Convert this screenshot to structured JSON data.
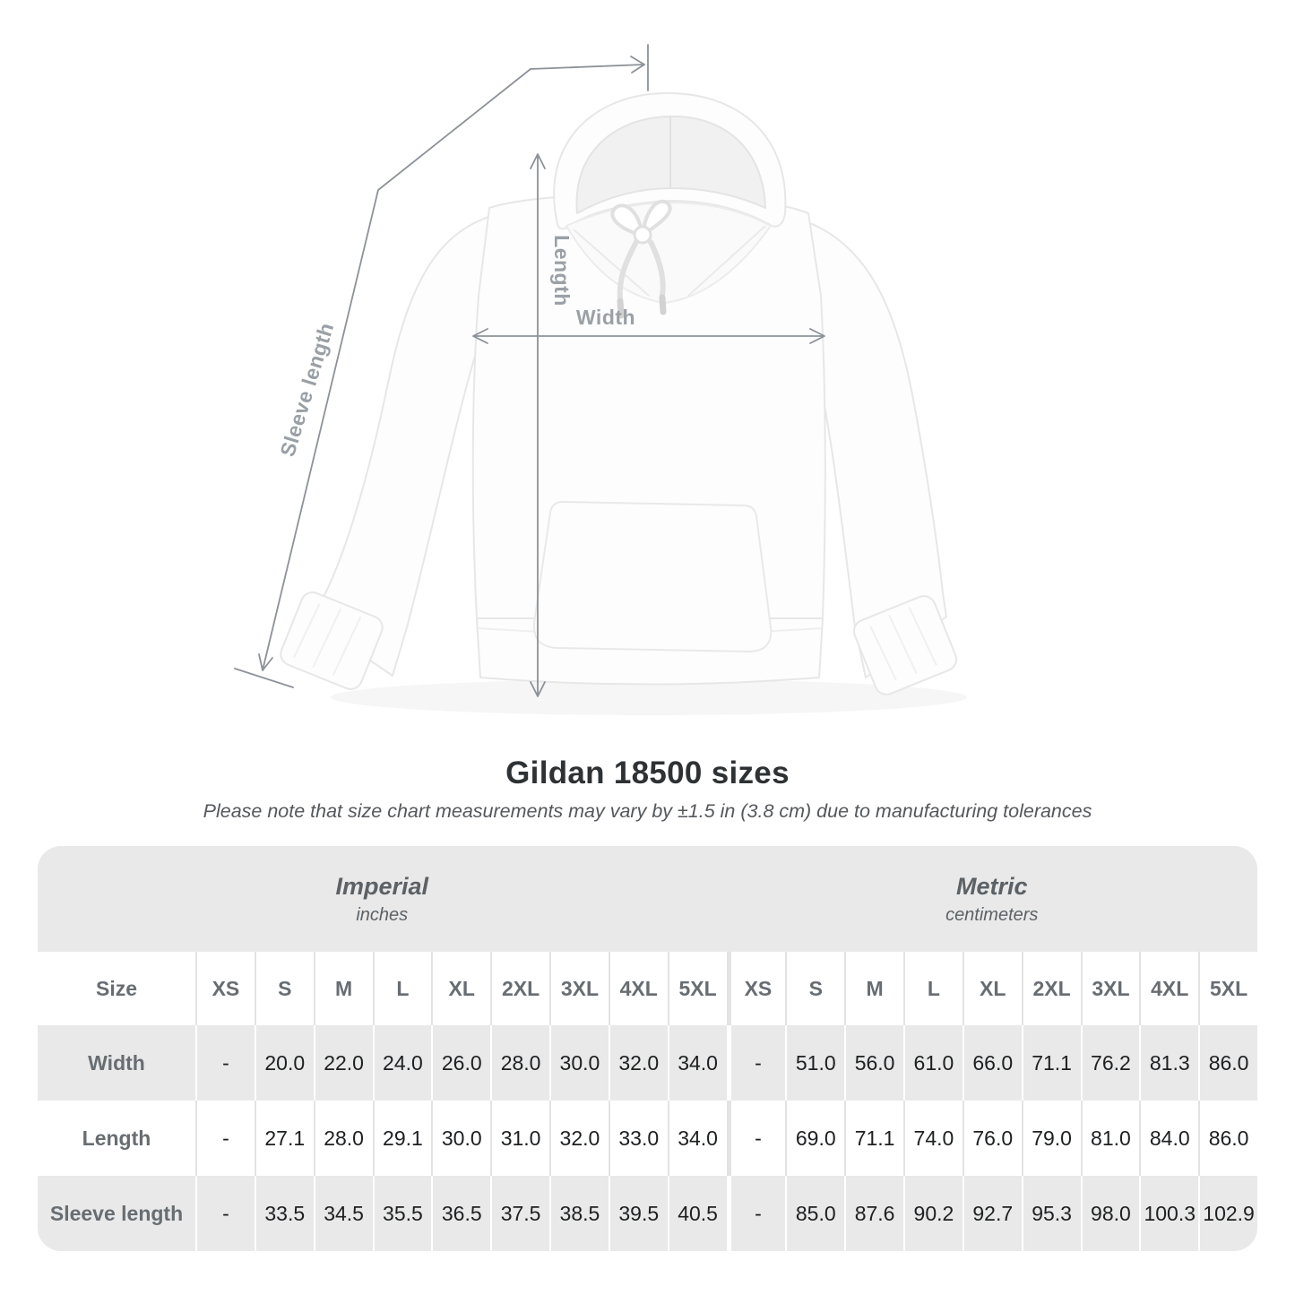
{
  "title": "Gildan 18500 sizes",
  "subtitle": "Please note that size chart measurements may vary by ±1.5 in (3.8 cm) due to manufacturing tolerances",
  "diagram": {
    "labels": {
      "width": "Width",
      "length": "Length",
      "sleeve": "Sleeve length"
    },
    "line_color": "#8d9298",
    "label_color": "#9aa0a5"
  },
  "table": {
    "size_label": "Size",
    "band_color": "#e9e9e9",
    "sections": [
      {
        "name": "Imperial",
        "unit": "inches"
      },
      {
        "name": "Metric",
        "unit": "centimeters"
      }
    ]
  },
  "chart_data": {
    "type": "table",
    "title": "Gildan 18500 sizes",
    "column_groups": [
      {
        "name": "Imperial",
        "unit": "inches"
      },
      {
        "name": "Metric",
        "unit": "centimeters"
      }
    ],
    "sizes": [
      "XS",
      "S",
      "M",
      "L",
      "XL",
      "2XL",
      "3XL",
      "4XL",
      "5XL"
    ],
    "rows": [
      {
        "measurement": "Width",
        "imperial": [
          "-",
          "20.0",
          "22.0",
          "24.0",
          "26.0",
          "28.0",
          "30.0",
          "32.0",
          "34.0"
        ],
        "metric": [
          "-",
          "51.0",
          "56.0",
          "61.0",
          "66.0",
          "71.1",
          "76.2",
          "81.3",
          "86.0"
        ]
      },
      {
        "measurement": "Length",
        "imperial": [
          "-",
          "27.1",
          "28.0",
          "29.1",
          "30.0",
          "31.0",
          "32.0",
          "33.0",
          "34.0"
        ],
        "metric": [
          "-",
          "69.0",
          "71.1",
          "74.0",
          "76.0",
          "79.0",
          "81.0",
          "84.0",
          "86.0"
        ]
      },
      {
        "measurement": "Sleeve length",
        "imperial": [
          "-",
          "33.5",
          "34.5",
          "35.5",
          "36.5",
          "37.5",
          "38.5",
          "39.5",
          "40.5"
        ],
        "metric": [
          "-",
          "85.0",
          "87.6",
          "90.2",
          "92.7",
          "95.3",
          "98.0",
          "100.3",
          "102.9"
        ]
      }
    ]
  }
}
